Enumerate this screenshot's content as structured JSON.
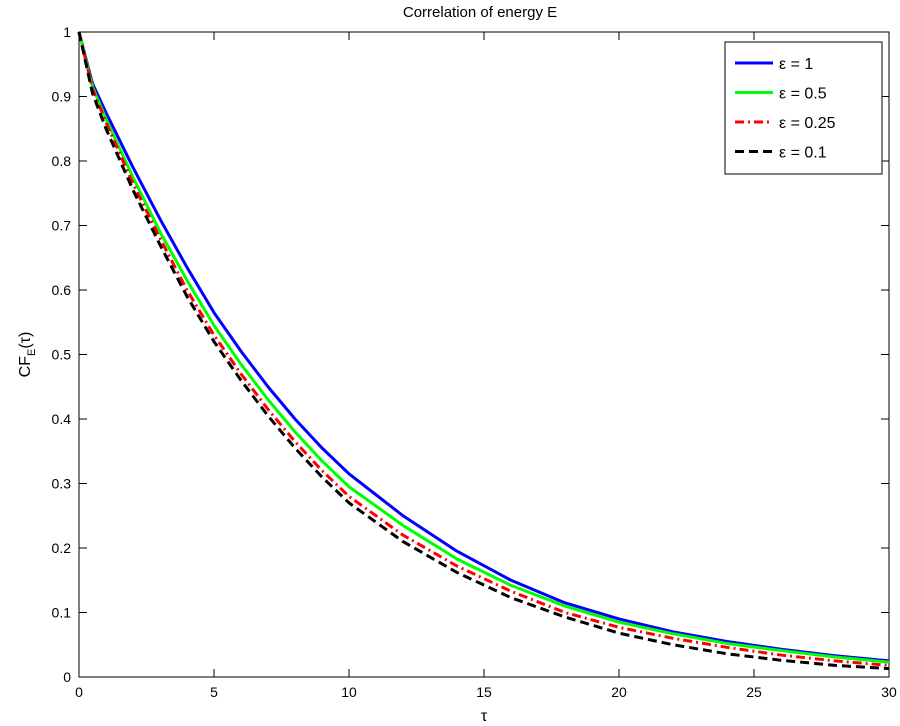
{
  "chart_data": {
    "type": "line",
    "title": "Correlation of energy E",
    "xlabel": "τ",
    "ylabel": {
      "main": "CF",
      "sub": "E",
      "suffix": "(τ)"
    },
    "xlim": [
      0,
      30
    ],
    "ylim": [
      0,
      1
    ],
    "xticks": [
      0,
      5,
      10,
      15,
      20,
      25,
      30
    ],
    "yticks": [
      0,
      0.1,
      0.2,
      0.3,
      0.4,
      0.5,
      0.6,
      0.7,
      0.8,
      0.9,
      1
    ],
    "xtick_labels": [
      "0",
      "5",
      "10",
      "15",
      "20",
      "25",
      "30"
    ],
    "ytick_labels": [
      "0",
      "0.1",
      "0.2",
      "0.3",
      "0.4",
      "0.5",
      "0.6",
      "0.7",
      "0.8",
      "0.9",
      "1"
    ],
    "grid": false,
    "legend_position": "top-right",
    "x": [
      0,
      0.5,
      1,
      2,
      3,
      4,
      5,
      6,
      7,
      8,
      9,
      10,
      12,
      14,
      16,
      18,
      20,
      22,
      24,
      26,
      28,
      30
    ],
    "series": [
      {
        "name": "ε = 1",
        "color": "#0000ff",
        "style": "solid",
        "values": [
          1.0,
          0.92,
          0.875,
          0.79,
          0.71,
          0.635,
          0.565,
          0.505,
          0.45,
          0.4,
          0.355,
          0.315,
          0.25,
          0.195,
          0.15,
          0.115,
          0.09,
          0.07,
          0.055,
          0.043,
          0.033,
          0.025
        ]
      },
      {
        "name": "ε = 0.5",
        "color": "#00ff00",
        "style": "solid",
        "values": [
          1.0,
          0.915,
          0.865,
          0.775,
          0.69,
          0.615,
          0.545,
          0.485,
          0.43,
          0.38,
          0.335,
          0.295,
          0.235,
          0.183,
          0.142,
          0.11,
          0.085,
          0.067,
          0.052,
          0.041,
          0.031,
          0.023
        ]
      },
      {
        "name": "ε = 0.25",
        "color": "#ff0000",
        "style": "dashdot",
        "values": [
          1.0,
          0.912,
          0.86,
          0.765,
          0.68,
          0.6,
          0.53,
          0.47,
          0.415,
          0.365,
          0.32,
          0.28,
          0.22,
          0.172,
          0.133,
          0.1,
          0.077,
          0.06,
          0.046,
          0.034,
          0.025,
          0.018
        ]
      },
      {
        "name": "ε = 0.1",
        "color": "#000000",
        "style": "dashed",
        "values": [
          1.0,
          0.905,
          0.85,
          0.755,
          0.67,
          0.59,
          0.52,
          0.46,
          0.405,
          0.355,
          0.31,
          0.27,
          0.21,
          0.162,
          0.123,
          0.093,
          0.068,
          0.05,
          0.036,
          0.026,
          0.018,
          0.013
        ]
      }
    ]
  }
}
